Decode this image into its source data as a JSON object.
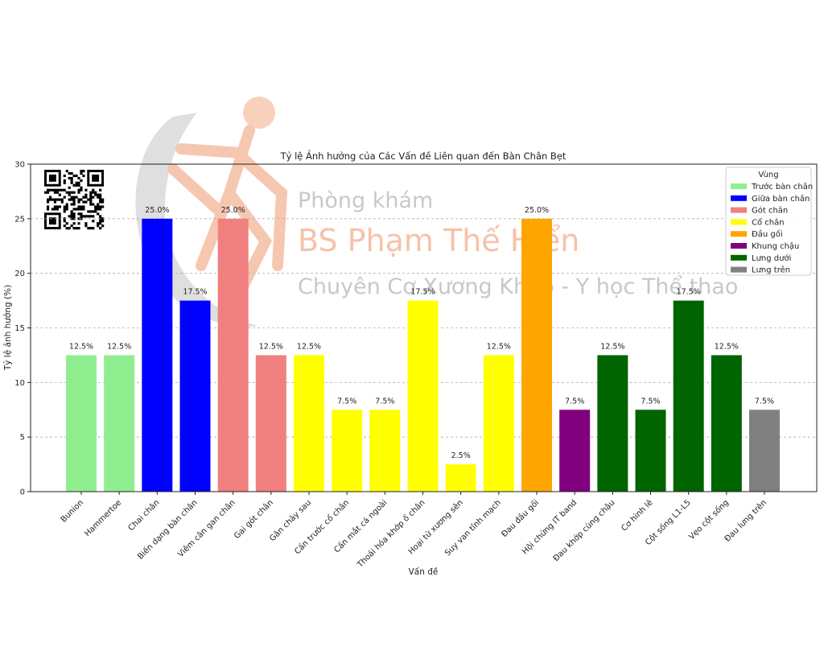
{
  "watermark": {
    "line1": "Phòng khám",
    "line2": "BS Phạm Thế Hiển",
    "line3": "Chuyên Cơ Xương Khớp - Y học Thể thao",
    "line1_color": "#c8c8c8",
    "line2_color": "#f6c2a8",
    "line3_color": "#c8c8c8"
  },
  "chart_data": {
    "type": "bar",
    "title": "Tỷ lệ Ảnh hưởng của Các Vấn đề Liên quan đến Bàn Chân Bẹt",
    "xlabel": "Vấn đề",
    "ylabel": "Tỷ lệ ảnh hưởng (%)",
    "ylim": [
      0,
      30
    ],
    "yticks": [
      0,
      5,
      10,
      15,
      20,
      25,
      30
    ],
    "grid": "y-dashed",
    "legend": {
      "title": "Vùng",
      "placement": "top-right",
      "entries": [
        {
          "name": "Trước bàn chân",
          "color": "#90ee90"
        },
        {
          "name": "Giữa bàn chân",
          "color": "#0000ff"
        },
        {
          "name": "Gót chân",
          "color": "#f08080"
        },
        {
          "name": "Cổ chân",
          "color": "#ffff00"
        },
        {
          "name": "Đầu gối",
          "color": "#ffa500"
        },
        {
          "name": "Khung chậu",
          "color": "#800080"
        },
        {
          "name": "Lưng dưới",
          "color": "#006400"
        },
        {
          "name": "Lưng trên",
          "color": "#808080"
        }
      ]
    },
    "bars": [
      {
        "category": "Bunion",
        "value": 12.5,
        "label": "12.5%",
        "region": 0
      },
      {
        "category": "Hammertoe",
        "value": 12.5,
        "label": "12.5%",
        "region": 0
      },
      {
        "category": "Chai chân",
        "value": 25.0,
        "label": "25.0%",
        "region": 1
      },
      {
        "category": "Biến dạng bàn chân",
        "value": 17.5,
        "label": "17.5%",
        "region": 1
      },
      {
        "category": "Viêm cân gan chân",
        "value": 25.0,
        "label": "25.0%",
        "region": 2
      },
      {
        "category": "Gai gót chân",
        "value": 12.5,
        "label": "12.5%",
        "region": 2
      },
      {
        "category": "Gân chày sau",
        "value": 12.5,
        "label": "12.5%",
        "region": 3
      },
      {
        "category": "Cấn trước cổ chân",
        "value": 7.5,
        "label": "7.5%",
        "region": 3
      },
      {
        "category": "Cấn mắt cá ngoài",
        "value": 7.5,
        "label": "7.5%",
        "region": 3
      },
      {
        "category": "Thoái hóa khớp ổ chân",
        "value": 17.5,
        "label": "17.5%",
        "region": 3
      },
      {
        "category": "Hoại tử xương sên",
        "value": 2.5,
        "label": "2.5%",
        "region": 3
      },
      {
        "category": "Suy van tĩnh mạch",
        "value": 12.5,
        "label": "12.5%",
        "region": 3
      },
      {
        "category": "Đau đầu gối",
        "value": 25.0,
        "label": "25.0%",
        "region": 4
      },
      {
        "category": "Hội chứng IT band",
        "value": 7.5,
        "label": "7.5%",
        "region": 5
      },
      {
        "category": "Đau khớp cùng chậu",
        "value": 12.5,
        "label": "12.5%",
        "region": 6
      },
      {
        "category": "Cơ hình lê",
        "value": 7.5,
        "label": "7.5%",
        "region": 6
      },
      {
        "category": "Cột sống L1-L5",
        "value": 17.5,
        "label": "17.5%",
        "region": 6
      },
      {
        "category": "Vẹo cột sống",
        "value": 12.5,
        "label": "12.5%",
        "region": 6
      },
      {
        "category": "Đau lưng trên",
        "value": 7.5,
        "label": "7.5%",
        "region": 7
      }
    ]
  }
}
